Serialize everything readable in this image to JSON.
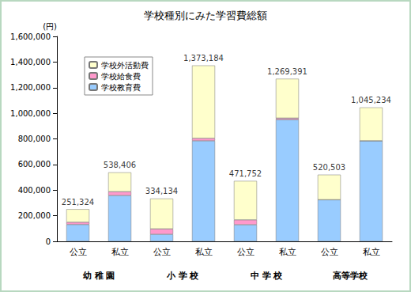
{
  "chart_data": {
    "type": "bar",
    "title": "学校種別にみた学習費総額",
    "y_label": "(円)",
    "categories": [
      "公立",
      "私立",
      "公立",
      "私立",
      "公立",
      "私立",
      "公立",
      "私立"
    ],
    "groups": [
      "幼 稚 園",
      "小 学 校",
      "中 学 校",
      "高等学校"
    ],
    "series": [
      {
        "name": "学校教育費",
        "color": "#99ccff",
        "values": [
          131624,
          358112,
          55197,
          785000,
          130000,
          950000,
          325000,
          785000
        ]
      },
      {
        "name": "学校給食費",
        "color": "#ff99cc",
        "values": [
          17920,
          29917,
          42035,
          20000,
          38000,
          12000,
          0,
          0
        ]
      },
      {
        "name": "学校外活動費",
        "color": "#ffffcc",
        "values": [
          101780,
          150377,
          236902,
          568184,
          303752,
          307391,
          195503,
          260234
        ]
      }
    ],
    "totals": [
      {
        "value": 251324,
        "label": "251,324"
      },
      {
        "value": 538406,
        "label": "538,406"
      },
      {
        "value": 334134,
        "label": "334,134"
      },
      {
        "value": 1373184,
        "label": "1,373,184"
      },
      {
        "value": 471752,
        "label": "471,752"
      },
      {
        "value": 1269391,
        "label": "1,269,391"
      },
      {
        "value": 520503,
        "label": "520,503"
      },
      {
        "value": 1045234,
        "label": "1,045,234"
      }
    ],
    "stacked": true,
    "ylim": [
      0,
      1600000
    ],
    "yticks": [
      0,
      {
        "value": 200000,
        "label": "200,000"
      },
      {
        "value": 400000,
        "label": "400,000"
      },
      {
        "value": 600000,
        "label": "600,000"
      },
      {
        "value": 800000,
        "label": "800,000"
      },
      {
        "value": 1000000,
        "label": "1,000,000"
      },
      {
        "value": 1200000,
        "label": "1,200,000"
      },
      {
        "value": 1400000,
        "label": "1,400,000"
      },
      {
        "value": 1600000,
        "label": "1,600,000"
      }
    ],
    "grid": false,
    "legend": "upper left"
  }
}
